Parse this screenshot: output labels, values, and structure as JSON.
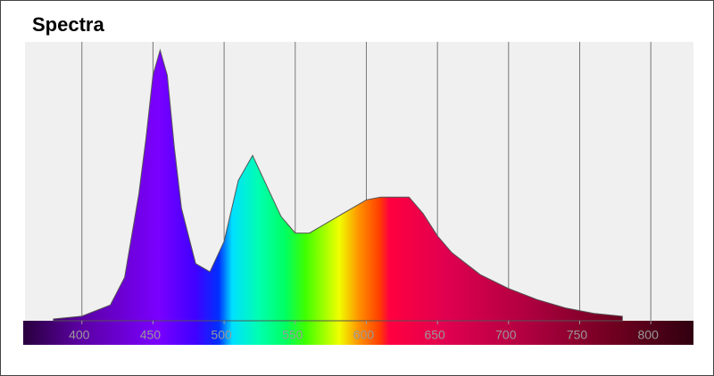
{
  "chart_data": {
    "type": "area",
    "title": "Spectra",
    "x": [
      380,
      400,
      420,
      430,
      440,
      445,
      450,
      455,
      460,
      465,
      470,
      480,
      490,
      500,
      510,
      520,
      530,
      540,
      550,
      560,
      580,
      600,
      610,
      620,
      630,
      640,
      650,
      660,
      680,
      700,
      720,
      740,
      760,
      780
    ],
    "values": [
      0,
      0.01,
      0.05,
      0.15,
      0.45,
      0.65,
      0.88,
      0.97,
      0.88,
      0.62,
      0.4,
      0.2,
      0.17,
      0.28,
      0.5,
      0.59,
      0.48,
      0.37,
      0.31,
      0.31,
      0.37,
      0.43,
      0.44,
      0.44,
      0.44,
      0.38,
      0.3,
      0.24,
      0.16,
      0.11,
      0.07,
      0.04,
      0.02,
      0.01
    ],
    "xlim": [
      360,
      830
    ],
    "ylim": [
      0,
      1
    ],
    "xticks": [
      400,
      450,
      500,
      550,
      600,
      650,
      700,
      750,
      800
    ],
    "grid": true
  }
}
